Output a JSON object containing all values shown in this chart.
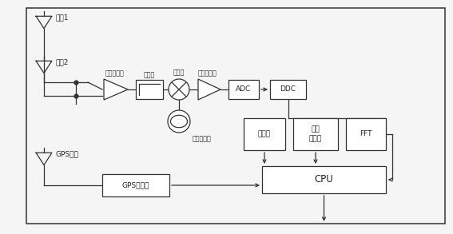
{
  "bg_color": "#f5f5f5",
  "line_color": "#333333",
  "box_color": "#ffffff",
  "text_color": "#222222",
  "labels": {
    "antenna1": "天线1",
    "antenna2": "天线2",
    "gps_antenna": "GPS天线",
    "lna": "逻辑放大器",
    "preselect": "预选器",
    "mixer": "混频器",
    "if_amp": "中频放大器",
    "adc": "ADC",
    "ddc": "DDC",
    "trigger": "触发器",
    "capture": "捕获\n存储器",
    "fft": "FFT",
    "cpu": "CPU",
    "gps_rx": "GPS接收机",
    "local_osc": "本地振荡器"
  },
  "fig_w": 5.67,
  "fig_h": 2.93,
  "dpi": 100
}
